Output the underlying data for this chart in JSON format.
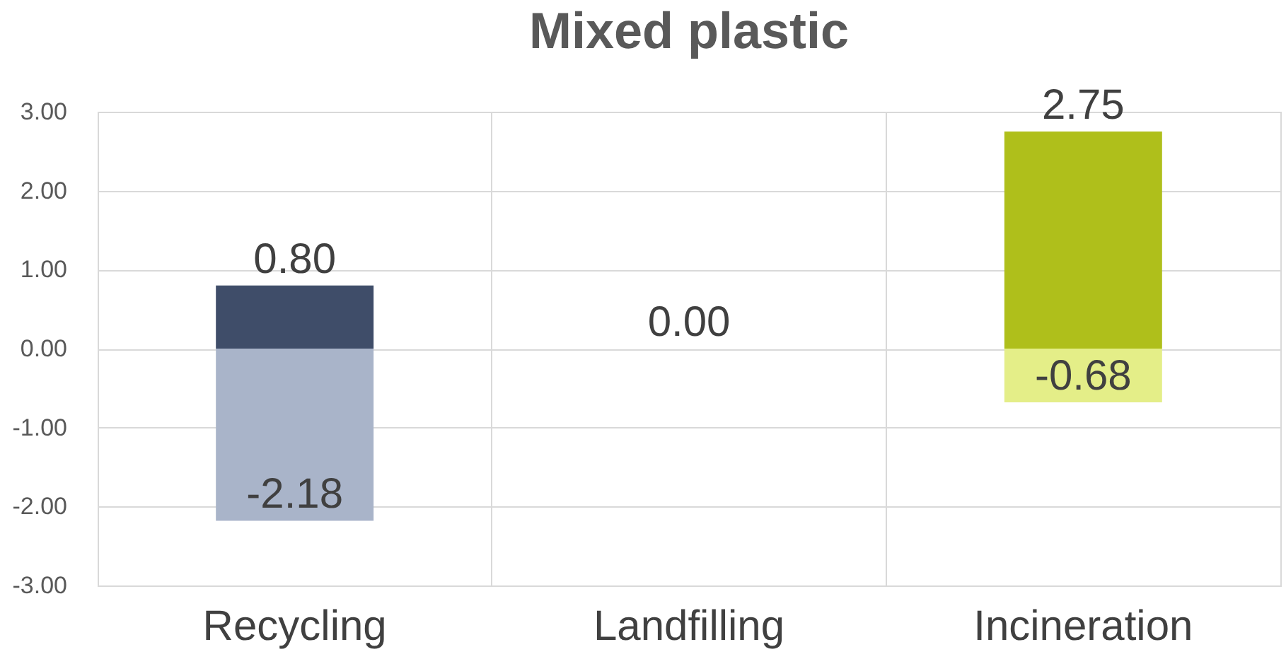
{
  "chart_data": {
    "type": "bar",
    "title": "Mixed plastic",
    "stacked": true,
    "grid": true,
    "categories": [
      "Recycling",
      "Landfilling",
      "Incineration"
    ],
    "ylim": [
      -3,
      3
    ],
    "yticks": [
      {
        "value": -3,
        "label": "-3.00"
      },
      {
        "value": -2,
        "label": "-2.00"
      },
      {
        "value": -1,
        "label": "-1.00"
      },
      {
        "value": 0,
        "label": "0.00"
      },
      {
        "value": 1,
        "label": "1.00"
      },
      {
        "value": 2,
        "label": "2.00"
      },
      {
        "value": 3,
        "label": "3.00"
      }
    ],
    "series": [
      {
        "values": [
          0.8,
          0.0,
          2.75
        ],
        "colors": [
          "#3f4d69",
          "#3f4d69",
          "#afbf1b"
        ],
        "value_labels": [
          "0.80",
          "0.00",
          "2.75"
        ]
      },
      {
        "values": [
          -2.18,
          null,
          -0.68
        ],
        "colors": [
          "#a9b4c9",
          null,
          "#e4ee88"
        ],
        "value_labels": [
          "-2.18",
          null,
          "-0.68"
        ]
      }
    ]
  }
}
